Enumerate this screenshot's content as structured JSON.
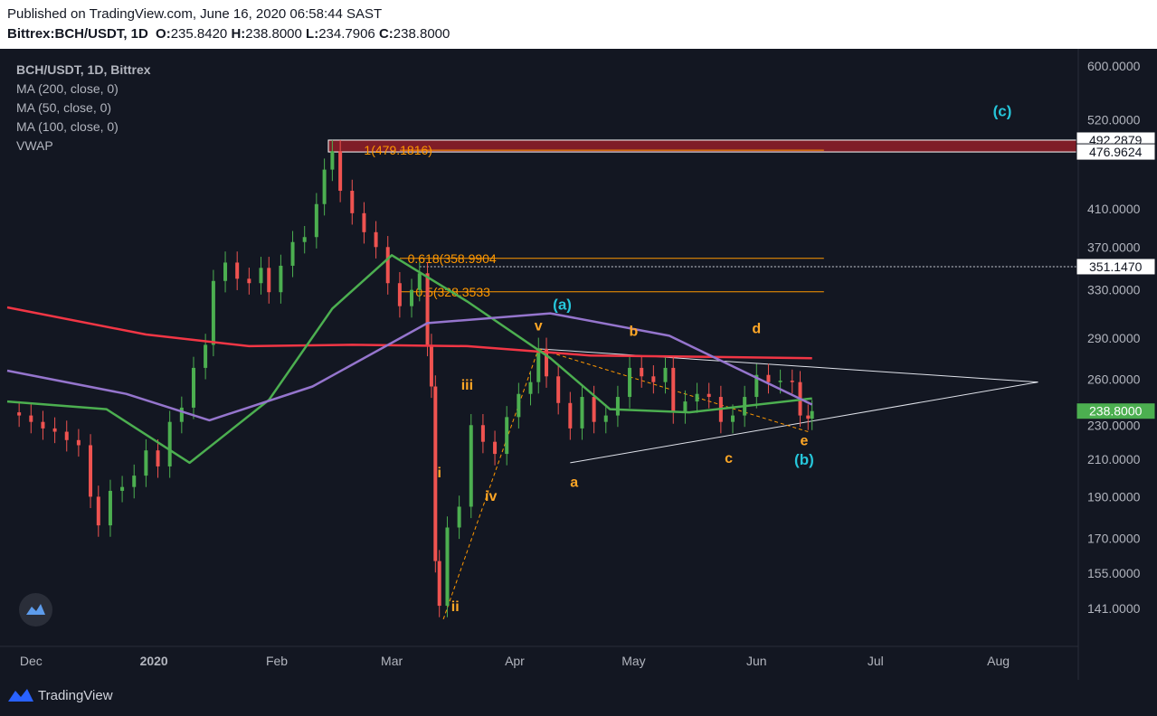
{
  "header": {
    "published": "Published on TradingView.com, June 16, 2020 06:58:44 SAST",
    "symbol": "Bittrex:BCH/USDT, 1D",
    "o_label": "O:",
    "o_value": "235.8420",
    "h_label": "H:",
    "h_value": "238.8000",
    "l_label": "L:",
    "l_value": "234.7906",
    "c_label": "C:",
    "c_value": "238.8000"
  },
  "legend": {
    "symbol": "BCH/USDT, 1D, Bittrex",
    "ma200": "MA (200, close, 0)",
    "ma50": "MA (50, close, 0)",
    "ma100": "MA (100, close, 0)",
    "vwap": "VWAP"
  },
  "footer": {
    "brand": "TradingView"
  },
  "colors": {
    "background": "#131722",
    "bull": "#4caf50",
    "bear": "#ef5350",
    "ma200": "#f23645",
    "ma50": "#4caf50",
    "ma100": "#9575cd",
    "fib": "#ff9800",
    "wave_label": "#ffa726",
    "cyan_label": "#26c6da",
    "zone": "#7f1d27",
    "grid_text": "#b2b5be",
    "triangle": "#e0e3eb"
  },
  "chart_data": {
    "type": "candlestick",
    "title": "BCH/USDT, 1D, Bittrex",
    "y_scale": "log",
    "x_ticks": [
      "Dec",
      "2020",
      "Feb",
      "Mar",
      "Apr",
      "May",
      "Jun",
      "Jul",
      "Aug"
    ],
    "y_ticks": [
      600,
      520,
      410,
      370,
      330,
      290,
      260,
      230,
      210,
      190,
      170,
      155,
      141
    ],
    "y_tick_labels": [
      "600.0000",
      "520.0000",
      "410.0000",
      "370.0000",
      "330.0000",
      "290.0000",
      "260.0000",
      "230.0000",
      "210.0000",
      "190.0000",
      "170.0000",
      "155.0000",
      "141.0000"
    ],
    "price_markers": [
      {
        "value": 492.2879,
        "label": "492.2879",
        "style": "zone"
      },
      {
        "value": 476.9624,
        "label": "476.9624",
        "style": "zone"
      },
      {
        "value": 351.147,
        "label": "351.1470",
        "style": "dotted"
      },
      {
        "value": 238.8,
        "label": "238.8000",
        "style": "last"
      }
    ],
    "fib_levels": [
      {
        "label": "1(479.1816)",
        "value": 479.1816
      },
      {
        "label": "0.618(358.9904",
        "value": 358.9904
      },
      {
        "label": "0.5(328.3533",
        "value": 328.3533
      }
    ],
    "resistance_zone": [
      476.9624,
      492.2879
    ],
    "close_points": [
      [
        "2019-11-25",
        238
      ],
      [
        "2019-11-28",
        236
      ],
      [
        "2019-12-01",
        232
      ],
      [
        "2019-12-04",
        228
      ],
      [
        "2019-12-07",
        226
      ],
      [
        "2019-12-10",
        221
      ],
      [
        "2019-12-13",
        218
      ],
      [
        "2019-12-16",
        190
      ],
      [
        "2019-12-18",
        176
      ],
      [
        "2019-12-21",
        193
      ],
      [
        "2019-12-24",
        195
      ],
      [
        "2019-12-27",
        201
      ],
      [
        "2019-12-30",
        215
      ],
      [
        "2020-01-02",
        206
      ],
      [
        "2020-01-05",
        232
      ],
      [
        "2020-01-08",
        241
      ],
      [
        "2020-01-11",
        268
      ],
      [
        "2020-01-14",
        285
      ],
      [
        "2020-01-16",
        338
      ],
      [
        "2020-01-19",
        355
      ],
      [
        "2020-01-22",
        340
      ],
      [
        "2020-01-25",
        336
      ],
      [
        "2020-01-28",
        350
      ],
      [
        "2020-01-30",
        328
      ],
      [
        "2020-02-02",
        352
      ],
      [
        "2020-02-05",
        375
      ],
      [
        "2020-02-08",
        380
      ],
      [
        "2020-02-11",
        415
      ],
      [
        "2020-02-13",
        455
      ],
      [
        "2020-02-15",
        478
      ],
      [
        "2020-02-17",
        430
      ],
      [
        "2020-02-20",
        405
      ],
      [
        "2020-02-23",
        385
      ],
      [
        "2020-02-26",
        370
      ],
      [
        "2020-02-29",
        336
      ],
      [
        "2020-03-03",
        316
      ],
      [
        "2020-03-06",
        330
      ],
      [
        "2020-03-08",
        345
      ],
      [
        "2020-03-10",
        285
      ],
      [
        "2020-03-11",
        255
      ],
      [
        "2020-03-12",
        160
      ],
      [
        "2020-03-13",
        142
      ],
      [
        "2020-03-15",
        175
      ],
      [
        "2020-03-18",
        185
      ],
      [
        "2020-03-21",
        230
      ],
      [
        "2020-03-24",
        220
      ],
      [
        "2020-03-27",
        213
      ],
      [
        "2020-03-30",
        235
      ],
      [
        "2020-04-02",
        250
      ],
      [
        "2020-04-05",
        258
      ],
      [
        "2020-04-07",
        282
      ],
      [
        "2020-04-09",
        262
      ],
      [
        "2020-04-12",
        244
      ],
      [
        "2020-04-15",
        228
      ],
      [
        "2020-04-18",
        248
      ],
      [
        "2020-04-21",
        232
      ],
      [
        "2020-04-24",
        236
      ],
      [
        "2020-04-27",
        248
      ],
      [
        "2020-04-30",
        268
      ],
      [
        "2020-05-03",
        262
      ],
      [
        "2020-05-06",
        258
      ],
      [
        "2020-05-09",
        268
      ],
      [
        "2020-05-11",
        238
      ],
      [
        "2020-05-14",
        245
      ],
      [
        "2020-05-17",
        250
      ],
      [
        "2020-05-20",
        248
      ],
      [
        "2020-05-23",
        232
      ],
      [
        "2020-05-26",
        236
      ],
      [
        "2020-05-29",
        248
      ],
      [
        "2020-06-01",
        263
      ],
      [
        "2020-06-04",
        258
      ],
      [
        "2020-06-07",
        259
      ],
      [
        "2020-06-10",
        258
      ],
      [
        "2020-06-12",
        236
      ],
      [
        "2020-06-14",
        234
      ],
      [
        "2020-06-15",
        238.8
      ]
    ],
    "series": [
      {
        "name": "MA (200, close, 0)",
        "points": [
          [
            "2019-11-25",
            315
          ],
          [
            "2019-12-30",
            293
          ],
          [
            "2020-01-25",
            284
          ],
          [
            "2020-02-20",
            285
          ],
          [
            "2020-03-20",
            284
          ],
          [
            "2020-04-20",
            277
          ],
          [
            "2020-05-20",
            276
          ],
          [
            "2020-06-15",
            275
          ]
        ]
      },
      {
        "name": "MA (50, close, 0)",
        "points": [
          [
            "2019-11-25",
            245
          ],
          [
            "2019-12-20",
            240
          ],
          [
            "2020-01-10",
            208
          ],
          [
            "2020-01-30",
            246
          ],
          [
            "2020-02-15",
            314
          ],
          [
            "2020-03-01",
            362
          ],
          [
            "2020-03-20",
            320
          ],
          [
            "2020-04-10",
            275
          ],
          [
            "2020-04-25",
            240
          ],
          [
            "2020-05-15",
            238
          ],
          [
            "2020-06-15",
            247
          ]
        ]
      },
      {
        "name": "MA (100, close, 0)",
        "points": [
          [
            "2019-11-25",
            266
          ],
          [
            "2019-12-25",
            250
          ],
          [
            "2020-01-15",
            233
          ],
          [
            "2020-02-10",
            255
          ],
          [
            "2020-03-10",
            302
          ],
          [
            "2020-04-10",
            310
          ],
          [
            "2020-05-10",
            292
          ],
          [
            "2020-06-15",
            243
          ]
        ]
      }
    ],
    "wave_labels": [
      {
        "text": "v",
        "date": "2020-04-07",
        "price": 296,
        "color": "orange"
      },
      {
        "text": "iii",
        "date": "2020-03-20",
        "price": 253,
        "color": "orange"
      },
      {
        "text": "i",
        "date": "2020-03-13",
        "price": 200,
        "color": "orange"
      },
      {
        "text": "iv",
        "date": "2020-03-26",
        "price": 188,
        "color": "orange"
      },
      {
        "text": "ii",
        "date": "2020-03-17",
        "price": 140,
        "color": "orange"
      },
      {
        "text": "a",
        "date": "2020-04-16",
        "price": 195,
        "color": "orange"
      },
      {
        "text": "b",
        "date": "2020-05-01",
        "price": 292,
        "color": "orange"
      },
      {
        "text": "c",
        "date": "2020-05-25",
        "price": 208,
        "color": "orange"
      },
      {
        "text": "d",
        "date": "2020-06-01",
        "price": 294,
        "color": "orange"
      },
      {
        "text": "e",
        "date": "2020-06-13",
        "price": 218,
        "color": "orange"
      },
      {
        "text": "(a)",
        "date": "2020-04-13",
        "price": 313,
        "color": "cyan"
      },
      {
        "text": "(b)",
        "date": "2020-06-13",
        "price": 207,
        "color": "cyan"
      },
      {
        "text": "(c)",
        "date": "2020-08-02",
        "price": 525,
        "color": "cyan"
      }
    ]
  }
}
